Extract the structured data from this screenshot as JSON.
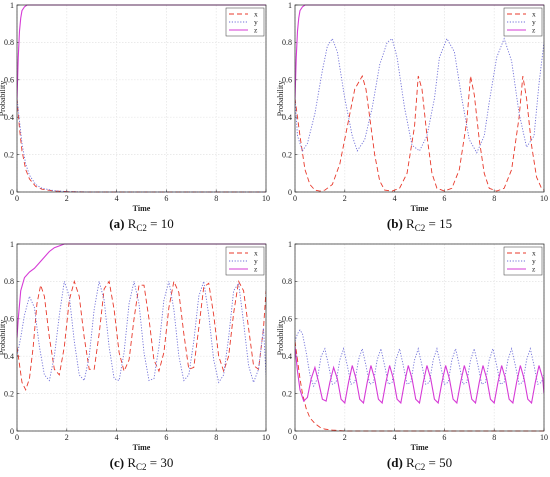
{
  "chart_data": [
    {
      "type": "line",
      "panel_letter": "(a)",
      "caption_main": "R",
      "caption_sub": "C2",
      "caption_value": " = 10",
      "xlabel": "Time",
      "ylabel": "Probability",
      "xlim": [
        0,
        10
      ],
      "ylim": [
        0,
        1
      ],
      "xticks": [
        0,
        2,
        4,
        6,
        8,
        10
      ],
      "yticks": [
        0,
        0.2,
        0.4,
        0.6,
        0.8,
        1
      ],
      "grid": true,
      "legend": "top-right",
      "series": [
        {
          "name": "x",
          "color": "#e8392b",
          "dash": "dashed",
          "x": [
            0,
            0.1,
            0.2,
            0.35,
            0.5,
            0.75,
            1.0,
            1.5,
            2.0,
            3,
            10
          ],
          "y": [
            0.5,
            0.34,
            0.22,
            0.12,
            0.07,
            0.03,
            0.015,
            0.005,
            0.002,
            0,
            0
          ]
        },
        {
          "name": "y",
          "color": "#6f6fd8",
          "dash": "dotted",
          "x": [
            0,
            0.1,
            0.2,
            0.35,
            0.5,
            0.75,
            1.0,
            1.5,
            2.0,
            3,
            10
          ],
          "y": [
            0.5,
            0.38,
            0.26,
            0.15,
            0.09,
            0.04,
            0.02,
            0.007,
            0.002,
            0,
            0
          ]
        },
        {
          "name": "z",
          "color": "#d63bd6",
          "dash": "solid",
          "x": [
            0,
            0.05,
            0.1,
            0.15,
            0.2,
            0.3,
            0.4,
            0.5,
            0.7,
            10
          ],
          "y": [
            0.5,
            0.72,
            0.86,
            0.93,
            0.97,
            0.99,
            1.0,
            1.0,
            1.0,
            1.0
          ]
        }
      ]
    },
    {
      "type": "line",
      "panel_letter": "(b)",
      "caption_main": "R",
      "caption_sub": "C2",
      "caption_value": " = 15",
      "xlabel": "Time",
      "ylabel": "Probability",
      "xlim": [
        0,
        10
      ],
      "ylim": [
        0,
        1
      ],
      "xticks": [
        0,
        2,
        4,
        6,
        8,
        10
      ],
      "yticks": [
        0,
        0.2,
        0.4,
        0.6,
        0.8,
        1
      ],
      "grid": true,
      "legend": "top-right",
      "series": [
        {
          "name": "x",
          "color": "#e8392b",
          "dash": "dashed",
          "x": [
            0,
            0.2,
            0.4,
            0.6,
            0.8,
            1.0,
            1.2,
            1.5,
            1.8,
            2.1,
            2.4,
            2.7,
            2.85,
            3.0,
            3.2,
            3.4,
            3.6,
            3.9,
            4.2,
            4.5,
            4.8,
            4.95,
            5.1,
            5.3,
            5.5,
            5.7,
            6.0,
            6.3,
            6.6,
            6.9,
            7.05,
            7.2,
            7.4,
            7.6,
            7.8,
            8.1,
            8.4,
            8.7,
            9.0,
            9.15,
            9.3,
            9.5,
            9.7,
            9.9,
            10
          ],
          "y": [
            0.5,
            0.3,
            0.12,
            0.04,
            0.01,
            0.005,
            0.01,
            0.04,
            0.15,
            0.35,
            0.55,
            0.62,
            0.55,
            0.4,
            0.2,
            0.06,
            0.01,
            0.005,
            0.02,
            0.1,
            0.35,
            0.62,
            0.55,
            0.3,
            0.1,
            0.02,
            0.005,
            0.02,
            0.12,
            0.38,
            0.62,
            0.52,
            0.28,
            0.1,
            0.02,
            0.005,
            0.02,
            0.12,
            0.4,
            0.62,
            0.5,
            0.25,
            0.08,
            0.02,
            0.01
          ]
        },
        {
          "name": "y",
          "color": "#6f6fd8",
          "dash": "dotted",
          "x": [
            0,
            0.1,
            0.3,
            0.5,
            0.8,
            1.1,
            1.3,
            1.5,
            1.7,
            2.0,
            2.3,
            2.5,
            2.8,
            3.1,
            3.4,
            3.7,
            3.9,
            4.1,
            4.4,
            4.7,
            5.0,
            5.3,
            5.6,
            5.8,
            6.1,
            6.4,
            6.7,
            7.0,
            7.3,
            7.6,
            7.8,
            8.1,
            8.4,
            8.7,
            9.0,
            9.3,
            9.6,
            9.8,
            10
          ],
          "y": [
            0.5,
            0.3,
            0.22,
            0.26,
            0.42,
            0.65,
            0.78,
            0.82,
            0.75,
            0.5,
            0.3,
            0.22,
            0.28,
            0.45,
            0.68,
            0.8,
            0.82,
            0.72,
            0.45,
            0.25,
            0.22,
            0.3,
            0.5,
            0.72,
            0.82,
            0.75,
            0.5,
            0.28,
            0.21,
            0.3,
            0.48,
            0.72,
            0.82,
            0.7,
            0.42,
            0.24,
            0.3,
            0.58,
            0.8
          ]
        },
        {
          "name": "z",
          "color": "#d63bd6",
          "dash": "solid",
          "x": [
            0,
            0.05,
            0.1,
            0.15,
            0.2,
            0.3,
            0.4,
            0.5,
            0.7,
            10
          ],
          "y": [
            0.5,
            0.72,
            0.86,
            0.93,
            0.97,
            0.99,
            1.0,
            1.0,
            1.0,
            1.0
          ]
        }
      ]
    },
    {
      "type": "line",
      "panel_letter": "(c)",
      "caption_main": "R",
      "caption_sub": "C2",
      "caption_value": " = 30",
      "xlabel": "Time",
      "ylabel": "Probability",
      "xlim": [
        0,
        10
      ],
      "ylim": [
        0,
        1
      ],
      "xticks": [
        0,
        2,
        4,
        6,
        8,
        10
      ],
      "yticks": [
        0,
        0.2,
        0.4,
        0.6,
        0.8,
        1
      ],
      "grid": true,
      "legend": "top-right",
      "series": [
        {
          "name": "x",
          "color": "#e8392b",
          "dash": "dashed",
          "x": [
            0,
            0.2,
            0.35,
            0.5,
            0.65,
            0.8,
            0.95,
            1.1,
            1.3,
            1.5,
            1.7,
            1.9,
            2.1,
            2.3,
            2.5,
            2.7,
            2.9,
            3.1,
            3.3,
            3.5,
            3.7,
            3.9,
            4.1,
            4.3,
            4.5,
            4.7,
            4.9,
            5.1,
            5.3,
            5.5,
            5.7,
            5.9,
            6.1,
            6.3,
            6.5,
            6.7,
            6.9,
            7.1,
            7.3,
            7.5,
            7.7,
            7.9,
            8.1,
            8.3,
            8.5,
            8.7,
            8.9,
            9.1,
            9.3,
            9.5,
            9.7,
            9.9,
            10
          ],
          "y": [
            0.45,
            0.26,
            0.22,
            0.28,
            0.45,
            0.68,
            0.78,
            0.72,
            0.5,
            0.33,
            0.3,
            0.45,
            0.7,
            0.8,
            0.72,
            0.5,
            0.33,
            0.33,
            0.52,
            0.76,
            0.8,
            0.65,
            0.42,
            0.32,
            0.38,
            0.6,
            0.78,
            0.78,
            0.6,
            0.38,
            0.32,
            0.42,
            0.66,
            0.8,
            0.74,
            0.52,
            0.33,
            0.34,
            0.55,
            0.77,
            0.79,
            0.62,
            0.4,
            0.32,
            0.4,
            0.63,
            0.8,
            0.75,
            0.55,
            0.35,
            0.33,
            0.55,
            0.75
          ]
        },
        {
          "name": "y",
          "color": "#6f6fd8",
          "dash": "dotted",
          "x": [
            0,
            0.15,
            0.3,
            0.5,
            0.7,
            0.9,
            1.1,
            1.3,
            1.5,
            1.7,
            1.9,
            2.1,
            2.3,
            2.5,
            2.7,
            2.9,
            3.1,
            3.3,
            3.5,
            3.7,
            3.9,
            4.1,
            4.3,
            4.5,
            4.7,
            4.9,
            5.1,
            5.3,
            5.5,
            5.7,
            5.9,
            6.1,
            6.3,
            6.5,
            6.7,
            6.9,
            7.1,
            7.3,
            7.5,
            7.7,
            7.9,
            8.1,
            8.3,
            8.5,
            8.7,
            8.9,
            9.1,
            9.3,
            9.5,
            9.7,
            9.9,
            10
          ],
          "y": [
            0.4,
            0.5,
            0.62,
            0.72,
            0.66,
            0.45,
            0.3,
            0.27,
            0.4,
            0.62,
            0.8,
            0.72,
            0.48,
            0.3,
            0.27,
            0.4,
            0.65,
            0.8,
            0.7,
            0.45,
            0.28,
            0.27,
            0.42,
            0.68,
            0.8,
            0.68,
            0.42,
            0.27,
            0.28,
            0.45,
            0.7,
            0.8,
            0.65,
            0.4,
            0.27,
            0.3,
            0.48,
            0.72,
            0.8,
            0.62,
            0.38,
            0.26,
            0.3,
            0.5,
            0.75,
            0.79,
            0.58,
            0.35,
            0.26,
            0.33,
            0.55,
            0.3
          ]
        },
        {
          "name": "z",
          "color": "#d63bd6",
          "dash": "solid",
          "x": [
            0,
            0.05,
            0.15,
            0.3,
            0.5,
            0.7,
            0.9,
            1.1,
            1.3,
            1.5,
            1.7,
            1.9,
            2.1,
            10
          ],
          "y": [
            0.5,
            0.6,
            0.75,
            0.82,
            0.85,
            0.87,
            0.9,
            0.93,
            0.96,
            0.98,
            0.99,
            1.0,
            1.0,
            1.0
          ]
        }
      ]
    },
    {
      "type": "line",
      "panel_letter": "(d)",
      "caption_main": "R",
      "caption_sub": "C2",
      "caption_value": " = 50",
      "xlabel": "Time",
      "ylabel": "Probability",
      "xlim": [
        0,
        10
      ],
      "ylim": [
        0,
        1
      ],
      "xticks": [
        0,
        2,
        4,
        6,
        8,
        10
      ],
      "yticks": [
        0,
        0.2,
        0.4,
        0.6,
        0.8,
        1
      ],
      "grid": true,
      "legend": "top-right",
      "series": [
        {
          "name": "x",
          "color": "#e8392b",
          "dash": "dashed",
          "x": [
            0,
            0.1,
            0.2,
            0.3,
            0.45,
            0.6,
            0.8,
            1.0,
            1.2,
            1.5,
            2.0,
            10
          ],
          "y": [
            0.48,
            0.38,
            0.28,
            0.2,
            0.12,
            0.07,
            0.04,
            0.02,
            0.01,
            0.005,
            0,
            0
          ]
        },
        {
          "name": "y",
          "color": "#6f6fd8",
          "dash": "dotted",
          "x": [
            0,
            0.1,
            0.2,
            0.3,
            0.45,
            0.6,
            0.75,
            0.9,
            1.05,
            1.2,
            1.35,
            1.5,
            1.65,
            1.8,
            1.95,
            2.1,
            2.25,
            2.4,
            2.55,
            2.7,
            2.85,
            3.0,
            3.15,
            3.3,
            3.45,
            3.6,
            3.75,
            3.9,
            4.05,
            4.2,
            4.35,
            4.5,
            4.65,
            4.8,
            4.95,
            5.1,
            5.25,
            5.4,
            5.55,
            5.7,
            5.85,
            6.0,
            6.15,
            6.3,
            6.45,
            6.6,
            6.75,
            6.9,
            7.05,
            7.2,
            7.35,
            7.5,
            7.65,
            7.8,
            7.95,
            8.1,
            8.25,
            8.4,
            8.55,
            8.7,
            8.85,
            9.0,
            9.15,
            9.3,
            9.45,
            9.6,
            9.75,
            9.9,
            10
          ],
          "y": [
            0.48,
            0.52,
            0.54,
            0.52,
            0.42,
            0.3,
            0.24,
            0.28,
            0.4,
            0.44,
            0.35,
            0.25,
            0.26,
            0.38,
            0.44,
            0.35,
            0.25,
            0.26,
            0.38,
            0.44,
            0.35,
            0.25,
            0.26,
            0.38,
            0.44,
            0.35,
            0.25,
            0.26,
            0.38,
            0.44,
            0.35,
            0.25,
            0.26,
            0.38,
            0.44,
            0.35,
            0.25,
            0.26,
            0.38,
            0.44,
            0.35,
            0.25,
            0.26,
            0.38,
            0.44,
            0.35,
            0.25,
            0.26,
            0.38,
            0.44,
            0.35,
            0.25,
            0.26,
            0.38,
            0.44,
            0.35,
            0.25,
            0.26,
            0.38,
            0.44,
            0.35,
            0.25,
            0.26,
            0.38,
            0.44,
            0.35,
            0.25,
            0.26,
            0.3
          ]
        },
        {
          "name": "z",
          "color": "#d63bd6",
          "dash": "solid",
          "x": [
            0,
            0.1,
            0.2,
            0.35,
            0.5,
            0.65,
            0.8,
            0.95,
            1.1,
            1.25,
            1.4,
            1.55,
            1.7,
            1.85,
            2.0,
            2.15,
            2.3,
            2.45,
            2.6,
            2.75,
            2.9,
            3.05,
            3.2,
            3.35,
            3.5,
            3.65,
            3.8,
            3.95,
            4.1,
            4.25,
            4.4,
            4.55,
            4.7,
            4.85,
            5.0,
            5.15,
            5.3,
            5.45,
            5.6,
            5.75,
            5.9,
            6.05,
            6.2,
            6.35,
            6.5,
            6.65,
            6.8,
            6.95,
            7.1,
            7.25,
            7.4,
            7.55,
            7.7,
            7.85,
            8.0,
            8.15,
            8.3,
            8.45,
            8.6,
            8.75,
            8.9,
            9.05,
            9.2,
            9.35,
            9.5,
            9.65,
            9.8,
            9.95,
            10
          ],
          "y": [
            0.45,
            0.32,
            0.22,
            0.16,
            0.18,
            0.28,
            0.34,
            0.26,
            0.17,
            0.16,
            0.26,
            0.34,
            0.28,
            0.17,
            0.15,
            0.26,
            0.35,
            0.28,
            0.17,
            0.15,
            0.26,
            0.35,
            0.28,
            0.17,
            0.15,
            0.26,
            0.35,
            0.28,
            0.17,
            0.15,
            0.26,
            0.35,
            0.28,
            0.17,
            0.15,
            0.26,
            0.35,
            0.28,
            0.17,
            0.15,
            0.26,
            0.35,
            0.28,
            0.17,
            0.15,
            0.26,
            0.35,
            0.28,
            0.17,
            0.15,
            0.26,
            0.35,
            0.28,
            0.17,
            0.15,
            0.26,
            0.35,
            0.28,
            0.17,
            0.15,
            0.26,
            0.35,
            0.28,
            0.17,
            0.15,
            0.26,
            0.35,
            0.28,
            0.2
          ]
        }
      ]
    }
  ]
}
